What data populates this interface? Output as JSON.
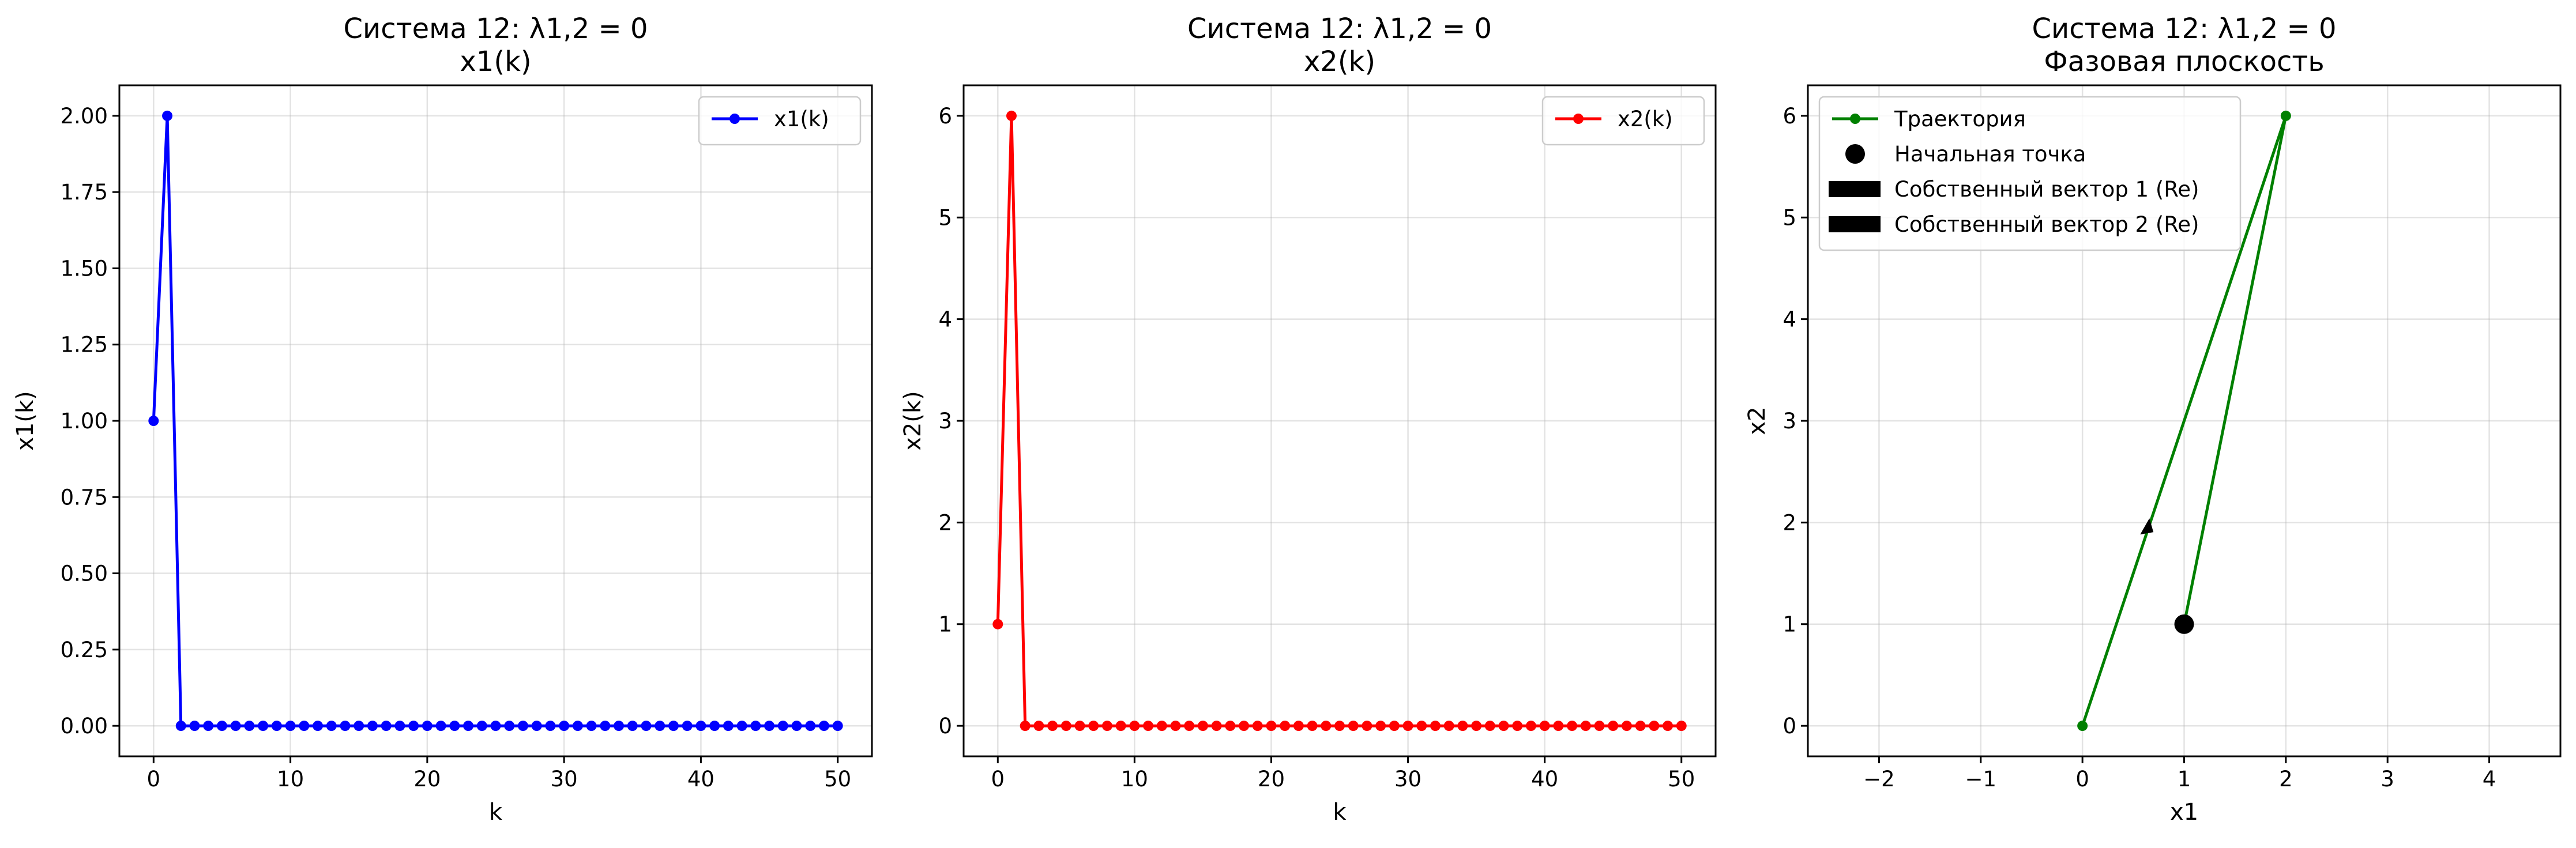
{
  "chart_data": [
    {
      "type": "line",
      "title": [
        "Система 12: λ1,2 = 0",
        "x1(k)"
      ],
      "xlabel": "k",
      "ylabel": "x1(k)",
      "xlim": [
        -2.5,
        52.5
      ],
      "ylim": [
        -0.1,
        2.1
      ],
      "xticks": [
        0,
        10,
        20,
        30,
        40,
        50
      ],
      "xtick_labels": [
        "0",
        "10",
        "20",
        "30",
        "40",
        "50"
      ],
      "yticks": [
        0,
        0.25,
        0.5,
        0.75,
        1.0,
        1.25,
        1.5,
        1.75,
        2.0
      ],
      "ytick_labels": [
        "0.00",
        "0.25",
        "0.50",
        "0.75",
        "1.00",
        "1.25",
        "1.50",
        "1.75",
        "2.00"
      ],
      "grid": true,
      "legend_position": "upper right",
      "series": [
        {
          "name": "x1(k)",
          "color": "#0000ff",
          "marker": "circle",
          "x": [
            0,
            1,
            2,
            3,
            4,
            5,
            6,
            7,
            8,
            9,
            10,
            11,
            12,
            13,
            14,
            15,
            16,
            17,
            18,
            19,
            20,
            21,
            22,
            23,
            24,
            25,
            26,
            27,
            28,
            29,
            30,
            31,
            32,
            33,
            34,
            35,
            36,
            37,
            38,
            39,
            40,
            41,
            42,
            43,
            44,
            45,
            46,
            47,
            48,
            49,
            50
          ],
          "y": [
            1,
            2,
            0,
            0,
            0,
            0,
            0,
            0,
            0,
            0,
            0,
            0,
            0,
            0,
            0,
            0,
            0,
            0,
            0,
            0,
            0,
            0,
            0,
            0,
            0,
            0,
            0,
            0,
            0,
            0,
            0,
            0,
            0,
            0,
            0,
            0,
            0,
            0,
            0,
            0,
            0,
            0,
            0,
            0,
            0,
            0,
            0,
            0,
            0,
            0,
            0
          ]
        }
      ]
    },
    {
      "type": "line",
      "title": [
        "Система 12: λ1,2 = 0",
        "x2(k)"
      ],
      "xlabel": "k",
      "ylabel": "x2(k)",
      "xlim": [
        -2.5,
        52.5
      ],
      "ylim": [
        -0.3,
        6.3
      ],
      "xticks": [
        0,
        10,
        20,
        30,
        40,
        50
      ],
      "xtick_labels": [
        "0",
        "10",
        "20",
        "30",
        "40",
        "50"
      ],
      "yticks": [
        0,
        1,
        2,
        3,
        4,
        5,
        6
      ],
      "ytick_labels": [
        "0",
        "1",
        "2",
        "3",
        "4",
        "5",
        "6"
      ],
      "grid": true,
      "legend_position": "upper right",
      "series": [
        {
          "name": "x2(k)",
          "color": "#ff0000",
          "marker": "circle",
          "x": [
            0,
            1,
            2,
            3,
            4,
            5,
            6,
            7,
            8,
            9,
            10,
            11,
            12,
            13,
            14,
            15,
            16,
            17,
            18,
            19,
            20,
            21,
            22,
            23,
            24,
            25,
            26,
            27,
            28,
            29,
            30,
            31,
            32,
            33,
            34,
            35,
            36,
            37,
            38,
            39,
            40,
            41,
            42,
            43,
            44,
            45,
            46,
            47,
            48,
            49,
            50
          ],
          "y": [
            1,
            6,
            0,
            0,
            0,
            0,
            0,
            0,
            0,
            0,
            0,
            0,
            0,
            0,
            0,
            0,
            0,
            0,
            0,
            0,
            0,
            0,
            0,
            0,
            0,
            0,
            0,
            0,
            0,
            0,
            0,
            0,
            0,
            0,
            0,
            0,
            0,
            0,
            0,
            0,
            0,
            0,
            0,
            0,
            0,
            0,
            0,
            0,
            0,
            0,
            0
          ]
        }
      ]
    },
    {
      "type": "line",
      "title": [
        "Система 12: λ1,2 = 0",
        "Фазовая плоскость"
      ],
      "xlabel": "x1",
      "ylabel": "x2",
      "xlim": [
        -2.7,
        4.7
      ],
      "ylim": [
        -0.3,
        6.3
      ],
      "xticks": [
        -2,
        -1,
        0,
        1,
        2,
        3,
        4
      ],
      "xtick_labels": [
        "−2",
        "−1",
        "0",
        "1",
        "2",
        "3",
        "4"
      ],
      "yticks": [
        0,
        1,
        2,
        3,
        4,
        5,
        6
      ],
      "ytick_labels": [
        "0",
        "1",
        "2",
        "3",
        "4",
        "5",
        "6"
      ],
      "grid": true,
      "legend_position": "upper left",
      "series": [
        {
          "name": "Траектория",
          "color": "#008000",
          "marker": "circle",
          "x": [
            1,
            2,
            0
          ],
          "y": [
            1,
            6,
            0
          ]
        },
        {
          "name": "Начальная точка",
          "color": "#000000",
          "marker": "large-circle",
          "x": [
            1
          ],
          "y": [
            1
          ]
        }
      ],
      "arrow": {
        "x": 0.63,
        "y": 1.95,
        "color": "#000000"
      },
      "legend_extra": [
        {
          "name": "Собственный вектор 1 (Re)",
          "color": "#000000",
          "marker": "rectangle"
        },
        {
          "name": "Собственный вектор 2 (Re)",
          "color": "#000000",
          "marker": "rectangle"
        }
      ]
    }
  ]
}
